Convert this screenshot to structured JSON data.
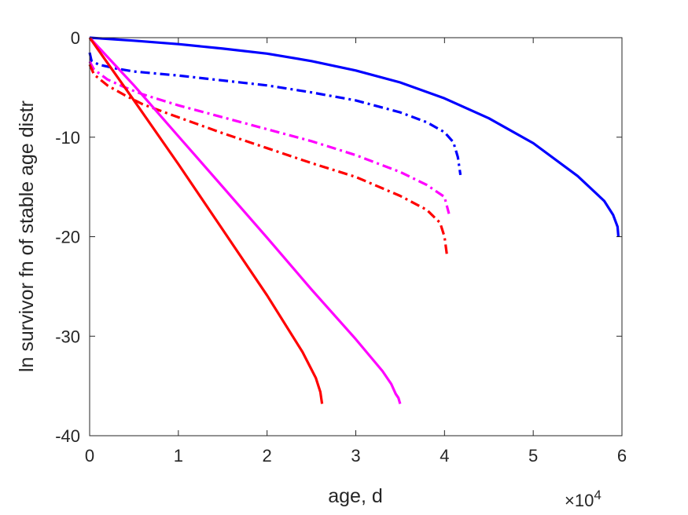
{
  "chart_data": {
    "type": "line",
    "title": "",
    "xlabel": "age, d",
    "ylabel": "ln survivor fn of stable age distr",
    "x_exponent_label": "×10^4",
    "x_exponent": {
      "base": "×10",
      "power": "4"
    },
    "xlim": [
      0,
      60000
    ],
    "ylim": [
      -40,
      0
    ],
    "xticks": [
      0,
      10000,
      20000,
      30000,
      40000,
      50000,
      60000
    ],
    "xtick_labels": [
      "0",
      "1",
      "2",
      "3",
      "4",
      "5",
      "6"
    ],
    "yticks": [
      -40,
      -30,
      -20,
      -10,
      0
    ],
    "ytick_labels": [
      "-40",
      "-30",
      "-20",
      "-10",
      "0"
    ],
    "grid": false,
    "legend": "none",
    "series": [
      {
        "color": "#0000ff",
        "style": "solid",
        "x": [
          0,
          5000,
          10000,
          15000,
          20000,
          25000,
          30000,
          35000,
          40000,
          45000,
          50000,
          55000,
          58000,
          59000,
          59500,
          59600
        ],
        "y": [
          0,
          -0.3,
          -0.65,
          -1.1,
          -1.6,
          -2.35,
          -3.3,
          -4.5,
          -6.1,
          -8.1,
          -10.6,
          -13.9,
          -16.4,
          -17.8,
          -19.0,
          -20.0
        ]
      },
      {
        "color": "#0000ff",
        "style": "dashdot",
        "x": [
          0,
          200,
          1000,
          3000,
          5000,
          10000,
          15000,
          20000,
          25000,
          30000,
          35000,
          38000,
          40000,
          41000,
          41500,
          41800
        ],
        "y": [
          -1.5,
          -2.3,
          -2.7,
          -3.1,
          -3.4,
          -3.8,
          -4.3,
          -4.8,
          -5.5,
          -6.3,
          -7.5,
          -8.5,
          -9.5,
          -10.5,
          -12,
          -13.8
        ]
      },
      {
        "color": "#ff00ff",
        "style": "dashdot",
        "x": [
          0,
          500,
          2000,
          4000,
          6000,
          10000,
          15000,
          20000,
          25000,
          30000,
          35000,
          38000,
          40000,
          40500
        ],
        "y": [
          -2.4,
          -3.2,
          -4.2,
          -5.0,
          -5.7,
          -6.8,
          -8.0,
          -9.2,
          -10.4,
          -11.8,
          -13.5,
          -14.8,
          -16.0,
          -17.7
        ]
      },
      {
        "color": "#ff0000",
        "style": "dashdot",
        "x": [
          0,
          500,
          2000,
          4000,
          6000,
          10000,
          15000,
          20000,
          25000,
          30000,
          35000,
          38000,
          39500,
          40000,
          40300
        ],
        "y": [
          -2.7,
          -3.7,
          -4.8,
          -5.8,
          -6.7,
          -8.0,
          -9.6,
          -11.1,
          -12.6,
          -14.0,
          -15.9,
          -17.3,
          -18.6,
          -20.0,
          -22.0
        ]
      },
      {
        "color": "#ff00ff",
        "style": "solid",
        "x": [
          0,
          5000,
          10000,
          15000,
          20000,
          25000,
          30000,
          33000,
          34000,
          34500,
          34800,
          35000
        ],
        "y": [
          0,
          -4.8,
          -9.9,
          -15.0,
          -20.1,
          -25.3,
          -30.3,
          -33.5,
          -34.8,
          -35.8,
          -36.2,
          -36.8
        ]
      },
      {
        "color": "#ff0000",
        "style": "solid",
        "x": [
          0,
          5000,
          10000,
          15000,
          20000,
          24000,
          25500,
          26000,
          26200
        ],
        "y": [
          0,
          -6.3,
          -12.7,
          -19.3,
          -25.9,
          -31.6,
          -34.2,
          -35.6,
          -36.8
        ]
      }
    ]
  }
}
